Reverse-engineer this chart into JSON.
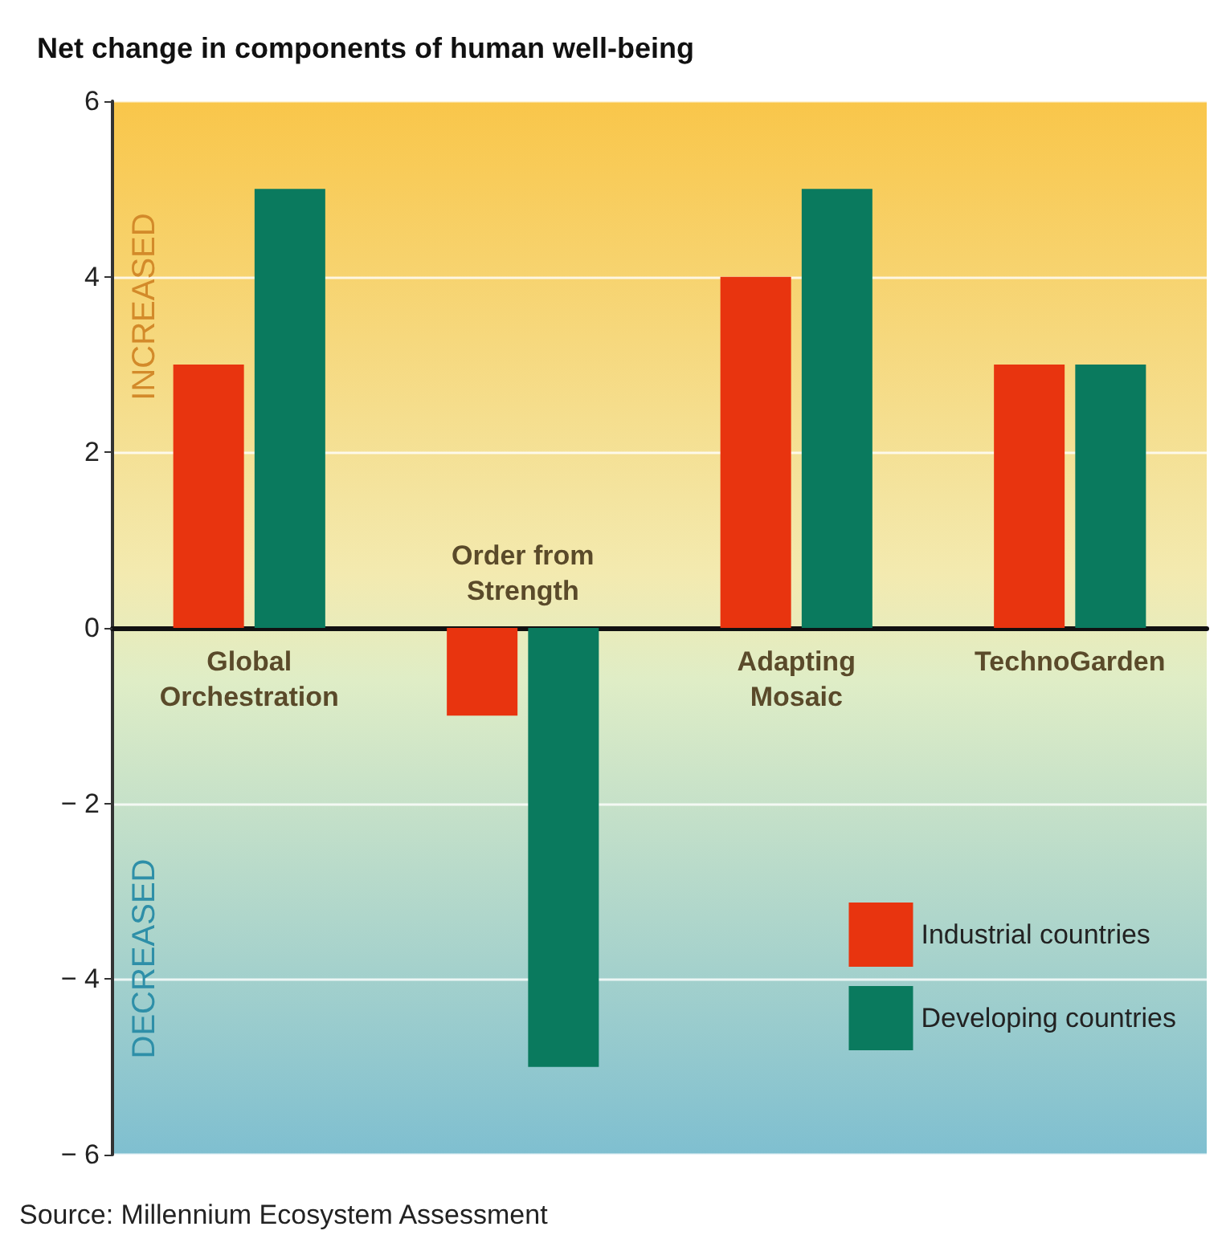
{
  "chart_data": {
    "type": "bar",
    "title": "Net change in components of human well-being",
    "categories": [
      "Global\nOrchestration",
      "Order from\nStrength",
      "Adapting\nMosaic",
      "TechnoGarden"
    ],
    "series": [
      {
        "name": "Industrial countries",
        "color": "#e8340f",
        "values": [
          3,
          -1,
          4,
          3
        ]
      },
      {
        "name": "Developing countries",
        "color": "#0a7a5e",
        "values": [
          5,
          -5,
          5,
          3
        ]
      }
    ],
    "ylim": [
      -6,
      6
    ],
    "yticks": [
      {
        "value": -6,
        "label": "− 6"
      },
      {
        "value": -4,
        "label": "− 4"
      },
      {
        "value": -2,
        "label": "− 2"
      },
      0,
      2,
      4,
      6
    ],
    "grid": "y",
    "legend": "bottom right",
    "annotations": [
      "INCREASED",
      "DECREASED",
      "Source: Millennium Ecosystem Assessment"
    ]
  }
}
